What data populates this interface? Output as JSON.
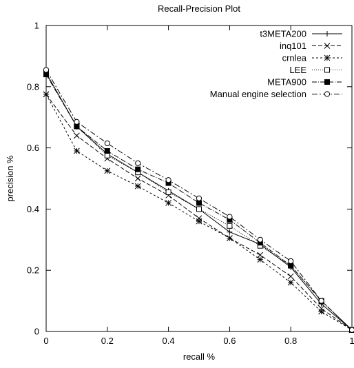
{
  "chart_data": {
    "type": "line",
    "title": "Recall-Precision Plot",
    "xlabel": "recall %",
    "ylabel": "precision %",
    "xlim": [
      0,
      1
    ],
    "ylim": [
      0,
      1
    ],
    "grid": false,
    "legend_position": "top-right",
    "x_ticks": [
      "0",
      "0.2",
      "0.4",
      "0.6",
      "0.8",
      "1"
    ],
    "y_ticks": [
      "0",
      "0.2",
      "0.4",
      "0.6",
      "0.8",
      "1"
    ],
    "x": [
      0,
      0.1,
      0.2,
      0.3,
      0.4,
      0.5,
      0.6,
      0.7,
      0.8,
      0.9,
      1.0
    ],
    "series": [
      {
        "name": "t3META200",
        "dash": "solid",
        "marker": "plus",
        "values": [
          0.845,
          0.67,
          0.58,
          0.52,
          0.46,
          0.4,
          0.325,
          0.285,
          0.21,
          0.09,
          0.005
        ]
      },
      {
        "name": "inq101",
        "dash": "dashed",
        "marker": "x",
        "values": [
          0.775,
          0.64,
          0.565,
          0.5,
          0.445,
          0.37,
          0.305,
          0.25,
          0.18,
          0.075,
          0.005
        ]
      },
      {
        "name": "crnlea",
        "dash": "short-dash",
        "marker": "star",
        "values": [
          0.775,
          0.59,
          0.525,
          0.475,
          0.42,
          0.36,
          0.305,
          0.235,
          0.16,
          0.065,
          0.005
        ]
      },
      {
        "name": "LEE",
        "dash": "dotted",
        "marker": "open-square",
        "values": [
          0.845,
          0.67,
          0.575,
          0.52,
          0.455,
          0.4,
          0.345,
          0.28,
          0.215,
          0.1,
          0.005
        ]
      },
      {
        "name": "META900",
        "dash": "dash-dot",
        "marker": "filled-square",
        "values": [
          0.84,
          0.67,
          0.59,
          0.53,
          0.485,
          0.42,
          0.365,
          0.29,
          0.215,
          0.1,
          0.005
        ]
      },
      {
        "name": "Manual engine selection",
        "dash": "dash-dot-long",
        "marker": "open-circle",
        "values": [
          0.855,
          0.685,
          0.615,
          0.55,
          0.495,
          0.435,
          0.375,
          0.3,
          0.23,
          0.1,
          0.005
        ]
      }
    ]
  }
}
